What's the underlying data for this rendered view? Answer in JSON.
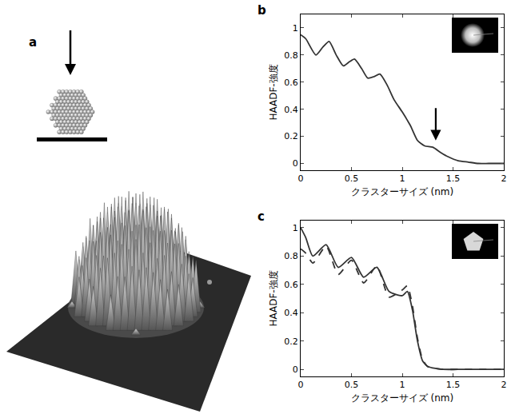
{
  "panel_a": {
    "panel": "a"
  },
  "chart_data": [
    {
      "panel": "b",
      "type": "line",
      "xlabel": "クラスターサイズ (nm)",
      "ylabel": "HAADF-強度",
      "xlim": [
        0,
        2
      ],
      "xticks": [
        0,
        0.5,
        1,
        1.5,
        2
      ],
      "ylim": [
        -0.05,
        1.1
      ],
      "yticks": [
        0,
        0.2,
        0.4,
        0.6,
        0.8,
        1
      ],
      "x": [
        0,
        0.05,
        0.15,
        0.22,
        0.28,
        0.35,
        0.42,
        0.48,
        0.53,
        0.6,
        0.66,
        0.72,
        0.78,
        0.85,
        0.92,
        1.0,
        1.08,
        1.15,
        1.22,
        1.3,
        1.38,
        1.45,
        1.55,
        1.65,
        1.75,
        1.85,
        2.0
      ],
      "series": [
        {
          "color": "#333333",
          "line_style": "solid",
          "values": [
            0.95,
            0.92,
            0.8,
            0.86,
            0.9,
            0.8,
            0.72,
            0.75,
            0.77,
            0.7,
            0.63,
            0.64,
            0.66,
            0.58,
            0.47,
            0.38,
            0.28,
            0.17,
            0.13,
            0.12,
            0.08,
            0.05,
            0.02,
            0.01,
            0,
            0,
            0
          ]
        }
      ],
      "annotations": [
        {
          "x": 1.33,
          "y": 0.17,
          "marker": "arrow"
        }
      ]
    },
    {
      "panel": "c",
      "type": "line",
      "xlabel": "クラスターサイズ (nm)",
      "ylabel": "HAADF-強度",
      "xlim": [
        0,
        2
      ],
      "xticks": [
        0,
        0.5,
        1,
        1.5,
        2
      ],
      "ylim": [
        -0.05,
        1.05
      ],
      "yticks": [
        0,
        0.2,
        0.4,
        0.6,
        0.8,
        1
      ],
      "x": [
        0,
        0.05,
        0.12,
        0.25,
        0.37,
        0.5,
        0.62,
        0.75,
        0.87,
        1.0,
        1.05,
        1.1,
        1.15,
        1.2,
        1.25,
        1.3,
        1.4,
        1.6,
        2.0
      ],
      "series": [
        {
          "color": "#333333",
          "line_style": "solid",
          "values": [
            1.0,
            0.93,
            0.8,
            0.88,
            0.72,
            0.79,
            0.65,
            0.72,
            0.55,
            0.52,
            0.55,
            0.42,
            0.2,
            0.06,
            0.02,
            0.01,
            0,
            0,
            0
          ]
        },
        {
          "color": "#333333",
          "line_style": "dash",
          "values": [
            0.85,
            0.82,
            0.75,
            0.87,
            0.67,
            0.77,
            0.61,
            0.73,
            0.51,
            0.56,
            0.59,
            0.45,
            0.22,
            0.07,
            0.02,
            0.01,
            0,
            0,
            0
          ]
        }
      ]
    }
  ]
}
